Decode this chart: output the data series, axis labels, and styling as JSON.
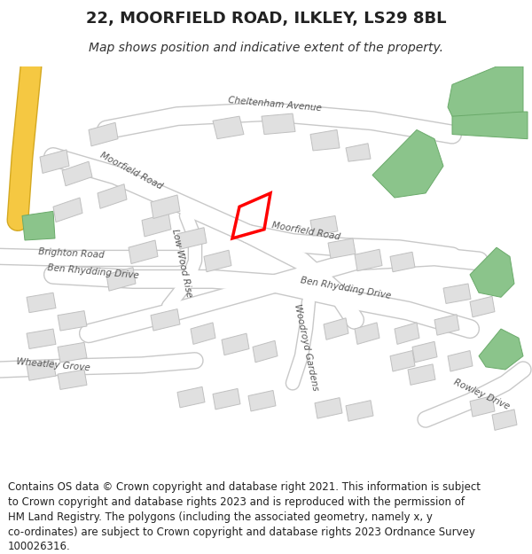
{
  "title": "22, MOORFIELD ROAD, ILKLEY, LS29 8BL",
  "subtitle": "Map shows position and indicative extent of the property.",
  "footer_lines": [
    "Contains OS data © Crown copyright and database right 2021. This information is subject",
    "to Crown copyright and database rights 2023 and is reproduced with the permission of",
    "HM Land Registry. The polygons (including the associated geometry, namely x, y",
    "co-ordinates) are subject to Crown copyright and database rights 2023 Ordnance Survey",
    "100026316."
  ],
  "bg_color": "#ffffff",
  "map_bg": "#f0f0f0",
  "road_color": "#ffffff",
  "road_outline": "#c8c8c8",
  "building_color": "#e0e0e0",
  "building_outline": "#c0c0c0",
  "green_color": "#8bc48b",
  "plot_color": "#ff0000",
  "road_label_color": "#555555",
  "title_fontsize": 13,
  "subtitle_fontsize": 10,
  "footer_fontsize": 8.5
}
